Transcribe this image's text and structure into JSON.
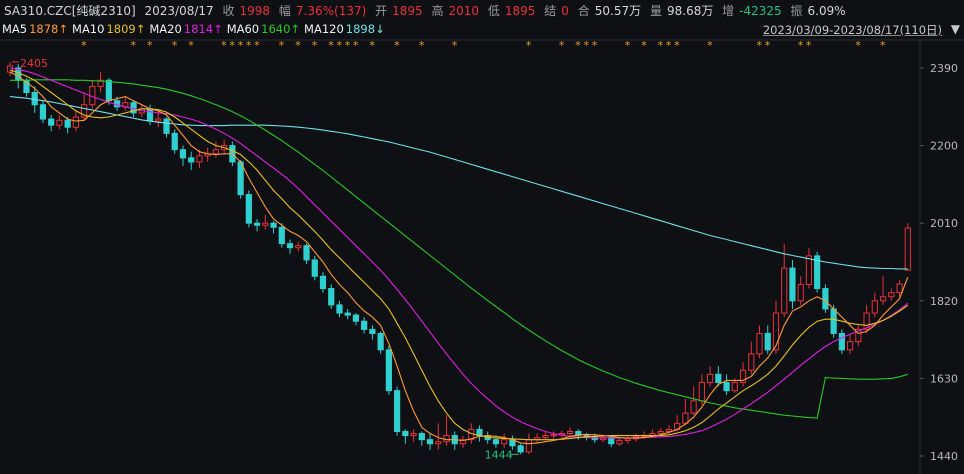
{
  "header": {
    "code": "SA310.CZC[纯碱2310]",
    "date": "2023/08/17",
    "close_label": "收",
    "close": "1998",
    "change_label": "幅",
    "change": "7.36%(137)",
    "open_label": "开",
    "open": "1895",
    "high_label": "高",
    "high": "2010",
    "low_label": "低",
    "low": "1895",
    "settle_label": "结",
    "settle": "0",
    "amount_label": "合",
    "amount": "50.57万",
    "volume_label": "量",
    "volume": "98.68万",
    "oi_label": "增",
    "oi": "-42325",
    "amp_label": "振",
    "amp": "6.09%"
  },
  "ma_legend": [
    {
      "name": "MA5",
      "value": "1878↑",
      "color": "#f2f2f2",
      "vcolor": "#ff9933"
    },
    {
      "name": "MA10",
      "value": "1809↑",
      "color": "#f2f2f2",
      "vcolor": "#e8c21c"
    },
    {
      "name": "MA20",
      "value": "1814↑",
      "color": "#f2f2f2",
      "vcolor": "#e020e0"
    },
    {
      "name": "MA60",
      "value": "1640↑",
      "color": "#f2f2f2",
      "vcolor": "#28c828"
    },
    {
      "name": "MA120",
      "value": "1898↓",
      "color": "#f2f2f2",
      "vcolor": "#6ee0e8"
    }
  ],
  "date_range": "2023/03/09-2023/08/17(110日)",
  "dropdown_glyph": "▼",
  "colors": {
    "up": "#e8313b",
    "down": "#2fd0cf",
    "ma5": "#ff9933",
    "ma10": "#e8c21c",
    "ma20": "#e020e0",
    "ma60": "#28c828",
    "ma120": "#6ee0e8",
    "bg": "#0f1014"
  },
  "chart_data": {
    "type": "candlestick",
    "ylim": [
      1420,
      2420
    ],
    "y_ticks": [
      "2390",
      "2200",
      "2010",
      "1820",
      "1630",
      "1440"
    ],
    "high_annotation": "2405",
    "low_annotation": "1444",
    "star_marker": "*",
    "candles": [
      [
        2380,
        2395,
        2370,
        2405
      ],
      [
        2390,
        2360,
        2340,
        2400
      ],
      [
        2360,
        2330,
        2320,
        2365
      ],
      [
        2330,
        2300,
        2280,
        2345
      ],
      [
        2300,
        2265,
        2255,
        2310
      ],
      [
        2265,
        2250,
        2235,
        2275
      ],
      [
        2250,
        2262,
        2240,
        2275
      ],
      [
        2262,
        2245,
        2230,
        2270
      ],
      [
        2245,
        2270,
        2235,
        2285
      ],
      [
        2270,
        2300,
        2260,
        2330
      ],
      [
        2300,
        2345,
        2290,
        2360
      ],
      [
        2345,
        2360,
        2330,
        2380
      ],
      [
        2360,
        2310,
        2300,
        2365
      ],
      [
        2310,
        2295,
        2285,
        2320
      ],
      [
        2295,
        2305,
        2285,
        2320
      ],
      [
        2305,
        2280,
        2270,
        2310
      ],
      [
        2280,
        2290,
        2270,
        2300
      ],
      [
        2290,
        2260,
        2250,
        2300
      ],
      [
        2260,
        2265,
        2245,
        2285
      ],
      [
        2265,
        2230,
        2220,
        2270
      ],
      [
        2230,
        2190,
        2180,
        2240
      ],
      [
        2190,
        2170,
        2150,
        2200
      ],
      [
        2170,
        2160,
        2140,
        2185
      ],
      [
        2160,
        2175,
        2145,
        2190
      ],
      [
        2175,
        2180,
        2160,
        2195
      ],
      [
        2180,
        2190,
        2170,
        2210
      ],
      [
        2190,
        2200,
        2180,
        2215
      ],
      [
        2200,
        2160,
        2150,
        2210
      ],
      [
        2160,
        2080,
        2070,
        2165
      ],
      [
        2080,
        2010,
        2000,
        2090
      ],
      [
        2010,
        2005,
        1990,
        2020
      ],
      [
        2005,
        2010,
        1995,
        2030
      ],
      [
        2010,
        2000,
        1985,
        2015
      ],
      [
        2000,
        1960,
        1950,
        2010
      ],
      [
        1960,
        1950,
        1935,
        1970
      ],
      [
        1950,
        1955,
        1940,
        1965
      ],
      [
        1955,
        1920,
        1910,
        1960
      ],
      [
        1920,
        1880,
        1870,
        1930
      ],
      [
        1880,
        1850,
        1840,
        1890
      ],
      [
        1850,
        1810,
        1800,
        1860
      ],
      [
        1810,
        1790,
        1780,
        1820
      ],
      [
        1790,
        1785,
        1775,
        1800
      ],
      [
        1785,
        1770,
        1760,
        1790
      ],
      [
        1770,
        1750,
        1740,
        1780
      ],
      [
        1750,
        1740,
        1725,
        1760
      ],
      [
        1740,
        1700,
        1690,
        1745
      ],
      [
        1700,
        1600,
        1590,
        1710
      ],
      [
        1600,
        1500,
        1490,
        1610
      ],
      [
        1500,
        1490,
        1470,
        1505
      ],
      [
        1490,
        1495,
        1475,
        1505
      ],
      [
        1495,
        1480,
        1465,
        1500
      ],
      [
        1480,
        1470,
        1455,
        1495
      ],
      [
        1470,
        1475,
        1455,
        1520
      ],
      [
        1475,
        1490,
        1465,
        1540
      ],
      [
        1490,
        1470,
        1455,
        1500
      ],
      [
        1470,
        1480,
        1460,
        1490
      ],
      [
        1480,
        1505,
        1470,
        1520
      ],
      [
        1505,
        1490,
        1475,
        1515
      ],
      [
        1490,
        1480,
        1470,
        1500
      ],
      [
        1480,
        1470,
        1460,
        1490
      ],
      [
        1470,
        1480,
        1460,
        1495
      ],
      [
        1480,
        1465,
        1455,
        1490
      ],
      [
        1465,
        1450,
        1444,
        1470
      ],
      [
        1450,
        1480,
        1444,
        1495
      ],
      [
        1480,
        1485,
        1470,
        1495
      ],
      [
        1485,
        1490,
        1480,
        1500
      ],
      [
        1490,
        1492,
        1482,
        1500
      ],
      [
        1492,
        1495,
        1485,
        1502
      ],
      [
        1495,
        1500,
        1485,
        1510
      ],
      [
        1500,
        1490,
        1480,
        1505
      ],
      [
        1490,
        1488,
        1478,
        1496
      ],
      [
        1488,
        1480,
        1472,
        1495
      ],
      [
        1480,
        1485,
        1474,
        1492
      ],
      [
        1485,
        1470,
        1462,
        1490
      ],
      [
        1470,
        1478,
        1465,
        1485
      ],
      [
        1478,
        1482,
        1470,
        1490
      ],
      [
        1482,
        1488,
        1475,
        1495
      ],
      [
        1488,
        1490,
        1482,
        1500
      ],
      [
        1490,
        1495,
        1485,
        1505
      ],
      [
        1495,
        1500,
        1490,
        1508
      ],
      [
        1500,
        1505,
        1495,
        1515
      ],
      [
        1505,
        1520,
        1500,
        1540
      ],
      [
        1520,
        1545,
        1515,
        1580
      ],
      [
        1545,
        1575,
        1540,
        1610
      ],
      [
        1575,
        1620,
        1565,
        1640
      ],
      [
        1620,
        1640,
        1610,
        1660
      ],
      [
        1640,
        1620,
        1610,
        1660
      ],
      [
        1620,
        1600,
        1590,
        1640
      ],
      [
        1600,
        1620,
        1595,
        1630
      ],
      [
        1620,
        1650,
        1610,
        1670
      ],
      [
        1650,
        1690,
        1640,
        1720
      ],
      [
        1690,
        1740,
        1680,
        1760
      ],
      [
        1740,
        1700,
        1690,
        1760
      ],
      [
        1700,
        1790,
        1690,
        1820
      ],
      [
        1790,
        1900,
        1780,
        1960
      ],
      [
        1900,
        1820,
        1800,
        1920
      ],
      [
        1820,
        1860,
        1810,
        1880
      ],
      [
        1860,
        1930,
        1850,
        1950
      ],
      [
        1930,
        1850,
        1840,
        1940
      ],
      [
        1850,
        1800,
        1790,
        1860
      ],
      [
        1800,
        1740,
        1730,
        1810
      ],
      [
        1740,
        1700,
        1690,
        1750
      ],
      [
        1700,
        1720,
        1690,
        1740
      ],
      [
        1720,
        1750,
        1710,
        1760
      ],
      [
        1750,
        1790,
        1740,
        1810
      ],
      [
        1790,
        1820,
        1780,
        1840
      ],
      [
        1820,
        1830,
        1810,
        1880
      ],
      [
        1830,
        1840,
        1820,
        1850
      ],
      [
        1840,
        1861,
        1830,
        1870
      ],
      [
        1895,
        1998,
        1895,
        2010
      ]
    ],
    "ma5": [
      2380,
      2370,
      2355,
      2340,
      2320,
      2295,
      2280,
      2265,
      2260,
      2262,
      2280,
      2300,
      2310,
      2315,
      2320,
      2310,
      2300,
      2290,
      2285,
      2275,
      2250,
      2225,
      2200,
      2185,
      2180,
      2178,
      2180,
      2180,
      2160,
      2120,
      2085,
      2050,
      2020,
      2005,
      1990,
      1980,
      1965,
      1940,
      1915,
      1885,
      1860,
      1840,
      1815,
      1795,
      1780,
      1760,
      1715,
      1660,
      1600,
      1550,
      1510,
      1495,
      1485,
      1480,
      1480,
      1478,
      1482,
      1488,
      1490,
      1488,
      1485,
      1480,
      1472,
      1470,
      1472,
      1475,
      1478,
      1482,
      1488,
      1492,
      1493,
      1492,
      1490,
      1488,
      1485,
      1484,
      1484,
      1485,
      1488,
      1492,
      1498,
      1505,
      1518,
      1535,
      1560,
      1590,
      1615,
      1625,
      1625,
      1625,
      1635,
      1660,
      1680,
      1710,
      1760,
      1795,
      1805,
      1820,
      1830,
      1820,
      1800,
      1780,
      1760,
      1740,
      1745,
      1760,
      1785,
      1805,
      1825,
      1878
    ],
    "ma10": [
      2385,
      2378,
      2370,
      2360,
      2345,
      2330,
      2315,
      2300,
      2285,
      2275,
      2270,
      2268,
      2270,
      2275,
      2280,
      2285,
      2290,
      2290,
      2288,
      2282,
      2270,
      2255,
      2240,
      2225,
      2210,
      2200,
      2195,
      2188,
      2178,
      2160,
      2140,
      2115,
      2090,
      2070,
      2048,
      2030,
      2010,
      1990,
      1968,
      1945,
      1925,
      1905,
      1885,
      1865,
      1845,
      1825,
      1800,
      1765,
      1730,
      1690,
      1650,
      1610,
      1575,
      1545,
      1520,
      1505,
      1495,
      1490,
      1486,
      1484,
      1483,
      1482,
      1481,
      1480,
      1480,
      1480,
      1480,
      1481,
      1483,
      1485,
      1487,
      1488,
      1489,
      1490,
      1490,
      1490,
      1490,
      1490,
      1490,
      1490,
      1492,
      1496,
      1502,
      1510,
      1522,
      1538,
      1555,
      1570,
      1585,
      1600,
      1612,
      1625,
      1640,
      1660,
      1685,
      1712,
      1735,
      1755,
      1770,
      1775,
      1775,
      1770,
      1765,
      1762,
      1760,
      1765,
      1772,
      1782,
      1795,
      1809
    ],
    "ma20": [
      2390,
      2386,
      2382,
      2376,
      2368,
      2360,
      2352,
      2344,
      2336,
      2328,
      2320,
      2313,
      2306,
      2300,
      2295,
      2290,
      2286,
      2283,
      2280,
      2278,
      2275,
      2270,
      2265,
      2258,
      2250,
      2240,
      2230,
      2218,
      2205,
      2190,
      2175,
      2160,
      2145,
      2130,
      2113,
      2095,
      2075,
      2055,
      2035,
      2015,
      1995,
      1975,
      1955,
      1935,
      1915,
      1895,
      1872,
      1848,
      1823,
      1797,
      1770,
      1743,
      1716,
      1690,
      1665,
      1640,
      1618,
      1598,
      1580,
      1563,
      1548,
      1535,
      1524,
      1515,
      1507,
      1500,
      1495,
      1491,
      1488,
      1486,
      1485,
      1484,
      1484,
      1484,
      1484,
      1484,
      1485,
      1485,
      1486,
      1487,
      1488,
      1490,
      1493,
      1497,
      1502,
      1510,
      1520,
      1530,
      1542,
      1555,
      1568,
      1582,
      1596,
      1612,
      1628,
      1645,
      1662,
      1678,
      1694,
      1708,
      1720,
      1730,
      1738,
      1746,
      1754,
      1762,
      1772,
      1784,
      1798,
      1814
    ],
    "ma60": [
      2360,
      2360,
      2360,
      2361,
      2361,
      2361,
      2361,
      2361,
      2360,
      2360,
      2359,
      2358,
      2357,
      2355,
      2353,
      2351,
      2348,
      2345,
      2342,
      2338,
      2333,
      2328,
      2322,
      2315,
      2308,
      2300,
      2292,
      2283,
      2273,
      2262,
      2250,
      2238,
      2225,
      2212,
      2198,
      2184,
      2169,
      2154,
      2139,
      2123,
      2107,
      2091,
      2075,
      2059,
      2043,
      2027,
      2011,
      1995,
      1979,
      1963,
      1947,
      1931,
      1915,
      1899,
      1883,
      1867,
      1851,
      1836,
      1821,
      1806,
      1791,
      1776,
      1762,
      1748,
      1735,
      1722,
      1710,
      1698,
      1687,
      1676,
      1666,
      1657,
      1648,
      1640,
      1632,
      1625,
      1618,
      1612,
      1606,
      1600,
      1595,
      1590,
      1585,
      1580,
      1575,
      1570,
      1566,
      1562,
      1558,
      1555,
      1552,
      1549,
      1546,
      1543,
      1540,
      1538,
      1536,
      1534,
      1533,
      1632,
      1631,
      1630,
      1629,
      1628,
      1628,
      1628,
      1629,
      1630,
      1634,
      1640
    ],
    "ma120": [
      2320,
      2318,
      2316,
      2313,
      2310,
      2307,
      2303,
      2299,
      2295,
      2291,
      2287,
      2283,
      2279,
      2275,
      2271,
      2267,
      2263,
      2260,
      2257,
      2255,
      2253,
      2251,
      2250,
      2249,
      2249,
      2249,
      2249,
      2250,
      2250,
      2250,
      2250,
      2250,
      2249,
      2248,
      2247,
      2245,
      2243,
      2241,
      2238,
      2235,
      2232,
      2229,
      2225,
      2221,
      2217,
      2213,
      2209,
      2204,
      2199,
      2194,
      2189,
      2184,
      2178,
      2172,
      2166,
      2160,
      2154,
      2148,
      2142,
      2136,
      2130,
      2124,
      2118,
      2112,
      2106,
      2100,
      2094,
      2088,
      2082,
      2076,
      2070,
      2064,
      2058,
      2052,
      2046,
      2040,
      2034,
      2028,
      2022,
      2016,
      2010,
      2004,
      1998,
      1992,
      1986,
      1980,
      1975,
      1970,
      1965,
      1960,
      1955,
      1950,
      1945,
      1940,
      1935,
      1931,
      1927,
      1923,
      1919,
      1915,
      1912,
      1909,
      1906,
      1903,
      1901,
      1900,
      1899,
      1899,
      1898,
      1898
    ],
    "stars": [
      9,
      15,
      17,
      20,
      22,
      26,
      27,
      28,
      29,
      30,
      33,
      35,
      37,
      39,
      40,
      41,
      42,
      44,
      47,
      50,
      54,
      63,
      67,
      69,
      70,
      71,
      75,
      77,
      79,
      80,
      81,
      85,
      91,
      92,
      96,
      97,
      103,
      106
    ]
  }
}
